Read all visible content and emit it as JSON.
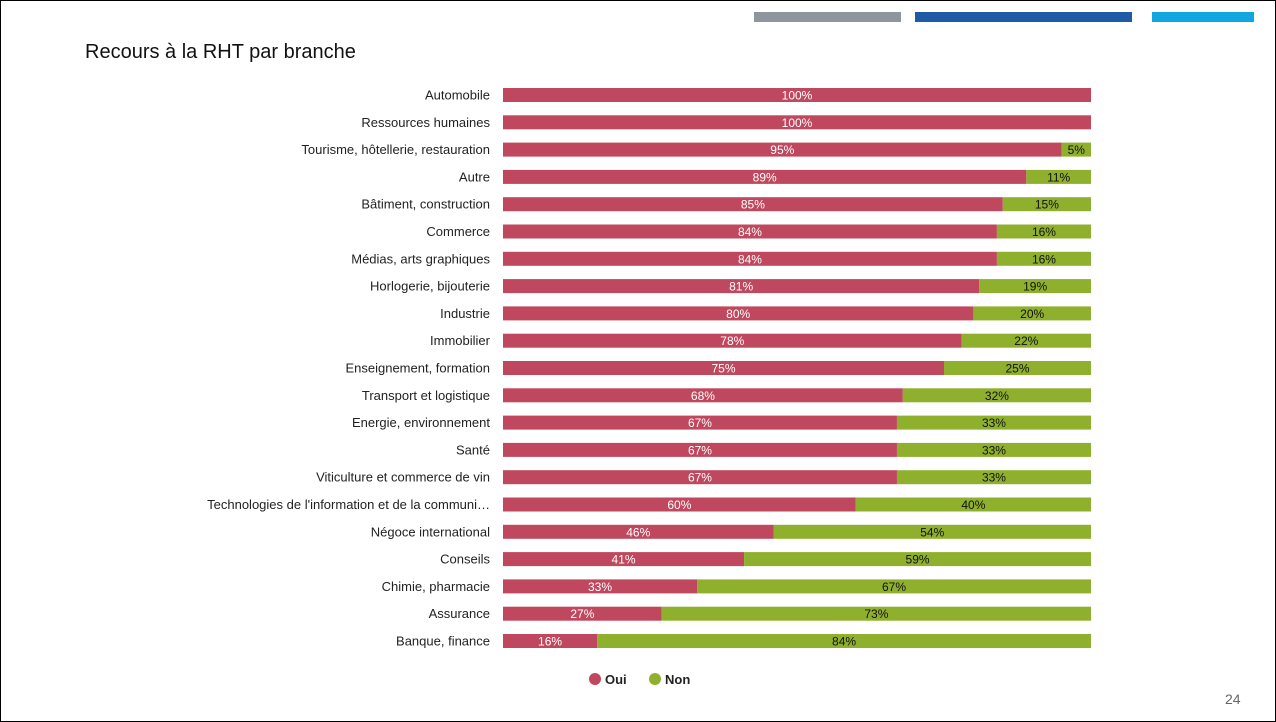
{
  "slide": {
    "title": "Recours à la RHT par branche",
    "page_number": "24",
    "accent_bars": [
      {
        "color": "#8e959e"
      },
      {
        "color": "#1f5aa6"
      },
      {
        "color": "#12a6de"
      }
    ]
  },
  "chart_data": {
    "type": "bar",
    "orientation": "horizontal",
    "stacked": true,
    "normalized": true,
    "title": "Recours à la RHT par branche",
    "categories": [
      "Automobile",
      "Ressources humaines",
      "Tourisme, hôtellerie, restauration",
      "Autre",
      "Bâtiment, construction",
      "Commerce",
      "Médias, arts graphiques",
      "Horlogerie, bijouterie",
      "Industrie",
      "Immobilier",
      "Enseignement, formation",
      "Transport et logistique",
      "Energie, environnement",
      "Santé",
      "Viticulture et commerce de vin",
      "Technologies de l'information et de la communi…",
      "Négoce international",
      "Conseils",
      "Chimie, pharmacie",
      "Assurance",
      "Banque, finance"
    ],
    "series": [
      {
        "name": "Oui",
        "color": "#c0485e",
        "label_color": "#ffffff",
        "values": [
          100,
          100,
          95,
          89,
          85,
          84,
          84,
          81,
          80,
          78,
          75,
          68,
          67,
          67,
          67,
          60,
          46,
          41,
          33,
          27,
          16
        ],
        "labels": [
          "100%",
          "100%",
          "95%",
          "89%",
          "85%",
          "84%",
          "84%",
          "81%",
          "80%",
          "78%",
          "75%",
          "68%",
          "67%",
          "67%",
          "67%",
          "60%",
          "46%",
          "41%",
          "33%",
          "27%",
          "16%"
        ]
      },
      {
        "name": "Non",
        "color": "#8fb02c",
        "label_color": "#111111",
        "values": [
          0,
          0,
          5,
          11,
          15,
          16,
          16,
          19,
          20,
          22,
          25,
          32,
          33,
          33,
          33,
          40,
          54,
          59,
          67,
          73,
          84
        ],
        "labels": [
          "",
          "",
          "5%",
          "11%",
          "15%",
          "16%",
          "16%",
          "19%",
          "20%",
          "22%",
          "25%",
          "32%",
          "33%",
          "33%",
          "33%",
          "40%",
          "54%",
          "59%",
          "67%",
          "73%",
          "84%"
        ]
      }
    ],
    "xlim": [
      0,
      100
    ],
    "grid": false,
    "legend_position": "bottom"
  }
}
